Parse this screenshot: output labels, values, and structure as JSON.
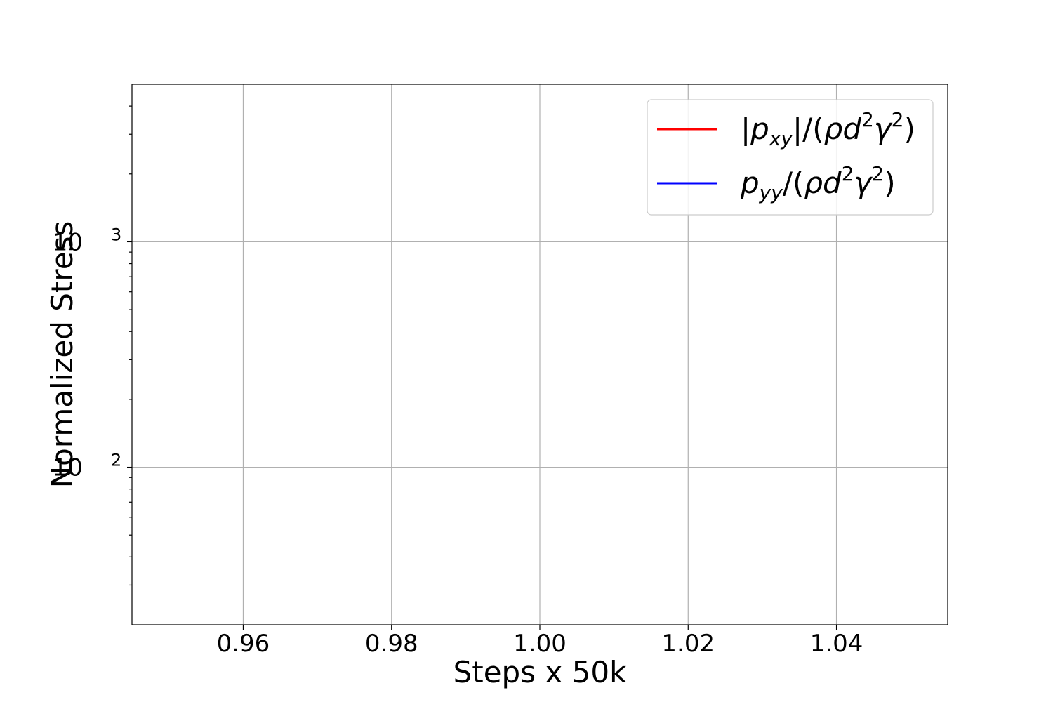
{
  "chart_data": {
    "type": "line",
    "xlabel": "Steps x 50k",
    "ylabel": "Normalized Stress",
    "xlim": [
      0.945,
      1.055
    ],
    "ylim": [
      20,
      5000
    ],
    "yscale": "log",
    "grid": true,
    "legend_position": "top-right",
    "x_ticks": [
      {
        "value": 0.96,
        "label": "0.96"
      },
      {
        "value": 0.98,
        "label": "0.98"
      },
      {
        "value": 1.0,
        "label": "1.00"
      },
      {
        "value": 1.02,
        "label": "1.02"
      },
      {
        "value": 1.04,
        "label": "1.04"
      }
    ],
    "y_ticks": [
      {
        "value": 100,
        "base": "10",
        "exp": "2"
      },
      {
        "value": 1000,
        "base": "10",
        "exp": "3"
      }
    ],
    "series": [
      {
        "name": "|pxy|/(ρd2γ2)",
        "color": "#ff0000",
        "x": [],
        "y": [],
        "legend_parts": [
          {
            "t": "|",
            "i": false
          },
          {
            "t": "p",
            "i": true
          },
          {
            "t": "xy",
            "i": true,
            "sub": true
          },
          {
            "t": "|/(",
            "i": false
          },
          {
            "t": "ρd",
            "i": true
          },
          {
            "t": "2",
            "i": false,
            "sup": true
          },
          {
            "t": "γ",
            "i": true
          },
          {
            "t": "2",
            "i": false,
            "sup": true
          },
          {
            "t": ")",
            "i": false
          }
        ]
      },
      {
        "name": "pyy/(ρd2γ2)",
        "color": "#0000ff",
        "x": [],
        "y": [],
        "legend_parts": [
          {
            "t": "p",
            "i": true
          },
          {
            "t": "yy",
            "i": true,
            "sub": true
          },
          {
            "t": "/(",
            "i": false
          },
          {
            "t": "ρd",
            "i": true
          },
          {
            "t": "2",
            "i": false,
            "sup": true
          },
          {
            "t": "γ",
            "i": true
          },
          {
            "t": "2",
            "i": false,
            "sup": true
          },
          {
            "t": ")",
            "i": false
          }
        ]
      }
    ]
  }
}
